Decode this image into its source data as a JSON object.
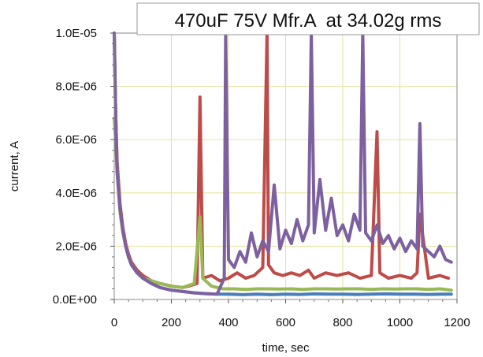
{
  "chart_data": {
    "type": "line",
    "title": "470uF 75V Mfr.A  at 34.02g rms",
    "xlabel": "time, sec",
    "ylabel": "current, A",
    "xlim": [
      0,
      1200
    ],
    "ylim": [
      0,
      1e-05
    ],
    "x_ticks": [
      0,
      200,
      400,
      600,
      800,
      1000,
      1200
    ],
    "x_tick_labels": [
      "0",
      "200",
      "400",
      "600",
      "800",
      "1000",
      "1200"
    ],
    "y_ticks": [
      0,
      2e-06,
      4e-06,
      6e-06,
      8e-06,
      1e-05
    ],
    "y_tick_labels": [
      "0.0E+00",
      "2.0E-06",
      "4.0E-06",
      "6.0E-06",
      "8.0E-06",
      "1.0E-05"
    ],
    "grid": true,
    "legend": "none",
    "series": [
      {
        "color": "#4a7ebb",
        "x": [
          0,
          5,
          10,
          20,
          30,
          40,
          50,
          60,
          80,
          100,
          130,
          160,
          200,
          240,
          280,
          320,
          360,
          400,
          450,
          500,
          550,
          600,
          650,
          700,
          750,
          800,
          850,
          900,
          950,
          1000,
          1050,
          1100,
          1150,
          1180
        ],
        "y": [
          1e-05,
          7e-06,
          5e-06,
          3.5e-06,
          2.6e-06,
          2e-06,
          1.6e-06,
          1.3e-06,
          1e-06,
          8e-07,
          6e-07,
          4.5e-07,
          3.5e-07,
          3e-07,
          2.5e-07,
          2.2e-07,
          2e-07,
          2e-07,
          1.8e-07,
          2e-07,
          1.8e-07,
          2e-07,
          1.9e-07,
          2.1e-07,
          2e-07,
          2e-07,
          1.9e-07,
          2e-07,
          2.1e-07,
          2e-07,
          2e-07,
          1.9e-07,
          2e-07,
          2e-07
        ]
      },
      {
        "color": "#be4b48",
        "x": [
          0,
          5,
          10,
          20,
          30,
          40,
          50,
          60,
          80,
          100,
          130,
          160,
          200,
          240,
          260,
          290,
          300,
          310,
          340,
          370,
          400,
          430,
          460,
          490,
          520,
          535,
          540,
          560,
          590,
          620,
          650,
          680,
          700,
          740,
          780,
          820,
          860,
          900,
          920,
          930,
          960,
          1000,
          1040,
          1060,
          1070,
          1100,
          1140,
          1170
        ],
        "y": [
          1e-05,
          7e-06,
          5.2e-06,
          3.6e-06,
          2.7e-06,
          2.1e-06,
          1.7e-06,
          1.4e-06,
          1.1e-06,
          9e-07,
          7e-07,
          6e-07,
          5e-07,
          4.5e-07,
          5e-07,
          6e-07,
          7.6e-06,
          8e-07,
          9e-07,
          7e-07,
          8e-07,
          1e-06,
          8e-07,
          9e-07,
          1.2e-06,
          1e-05,
          1.3e-06,
          1e-06,
          9e-07,
          1e-06,
          9e-07,
          1.1e-06,
          8e-07,
          1e-06,
          9e-07,
          1e-06,
          8e-07,
          9e-07,
          6.3e-06,
          1e-06,
          8e-07,
          9e-07,
          8e-07,
          1e-06,
          3.2e-06,
          8e-07,
          9e-07,
          8e-07
        ]
      },
      {
        "color": "#98b954",
        "x": [
          0,
          5,
          10,
          20,
          30,
          40,
          50,
          60,
          80,
          100,
          130,
          160,
          200,
          240,
          280,
          300,
          310,
          340,
          380,
          420,
          460,
          500,
          540,
          580,
          620,
          660,
          700,
          740,
          780,
          820,
          860,
          900,
          940,
          980,
          1020,
          1060,
          1100,
          1140,
          1180
        ],
        "y": [
          6.8e-06,
          6e-06,
          4.8e-06,
          3.3e-06,
          2.5e-06,
          2e-06,
          1.6e-06,
          1.3e-06,
          1e-06,
          8e-07,
          7e-07,
          6e-07,
          5e-07,
          4.5e-07,
          6e-07,
          3.1e-06,
          8e-07,
          5e-07,
          4e-07,
          4e-07,
          3.8e-07,
          4e-07,
          4e-07,
          3.9e-07,
          4e-07,
          3.8e-07,
          4e-07,
          4e-07,
          3.9e-07,
          4e-07,
          4e-07,
          3.8e-07,
          4e-07,
          3.9e-07,
          4e-07,
          4e-07,
          3.8e-07,
          4e-07,
          3.5e-07
        ]
      },
      {
        "color": "#7d60a0",
        "x": [
          0,
          5,
          10,
          20,
          30,
          40,
          50,
          60,
          80,
          100,
          130,
          160,
          200,
          240,
          280,
          320,
          360,
          385,
          390,
          400,
          420,
          440,
          460,
          480,
          500,
          520,
          540,
          560,
          580,
          600,
          620,
          640,
          660,
          680,
          690,
          700,
          720,
          740,
          760,
          780,
          800,
          820,
          840,
          860,
          870,
          880,
          900,
          920,
          940,
          960,
          980,
          1000,
          1020,
          1040,
          1060,
          1070,
          1080,
          1100,
          1120,
          1140,
          1160,
          1180
        ],
        "y": [
          1e-05,
          6.8e-06,
          4.8e-06,
          3.4e-06,
          2.6e-06,
          2e-06,
          1.6e-06,
          1.3e-06,
          1e-06,
          8e-07,
          6e-07,
          4.5e-07,
          3.5e-07,
          3e-07,
          2.5e-07,
          2.2e-07,
          2e-07,
          8e-07,
          1e-05,
          1.5e-06,
          1.2e-06,
          1.8e-06,
          1.4e-06,
          2.5e-06,
          1.6e-06,
          2.2e-06,
          1.8e-06,
          4.3e-06,
          1.9e-06,
          2.6e-06,
          2.1e-06,
          3e-06,
          2.2e-06,
          2.8e-06,
          1e-05,
          2.5e-06,
          4.5e-06,
          2.6e-06,
          3.8e-06,
          2.4e-06,
          2.8e-06,
          2.2e-06,
          3.2e-06,
          2.6e-06,
          1e-05,
          2.5e-06,
          2.2e-06,
          2.8e-06,
          2.1e-06,
          2.4e-06,
          1.9e-06,
          2.3e-06,
          1.8e-06,
          2.2e-06,
          1.9e-06,
          6.6e-06,
          2e-06,
          1.8e-06,
          1.6e-06,
          2e-06,
          1.5e-06,
          1.4e-06
        ]
      }
    ]
  }
}
